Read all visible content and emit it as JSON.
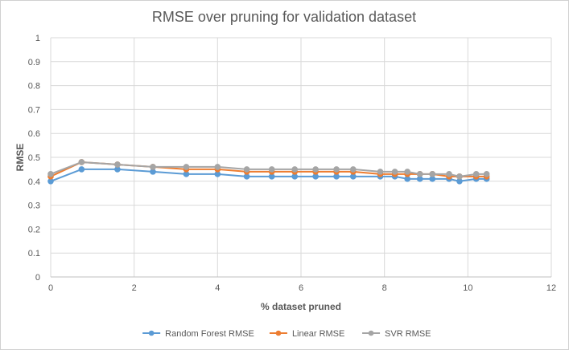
{
  "chart_data": {
    "type": "scatter",
    "title": "RMSE over pruning for validation dataset",
    "xlabel": "% dataset pruned",
    "ylabel": "RMSE",
    "xlim": [
      0,
      12
    ],
    "ylim": [
      0,
      1
    ],
    "xticks": [
      "0",
      "2",
      "4",
      "6",
      "8",
      "10",
      "12"
    ],
    "yticks": [
      "0",
      "0.1",
      "0.2",
      "0.3",
      "0.4",
      "0.5",
      "0.6",
      "0.7",
      "0.8",
      "0.9",
      "1"
    ],
    "grid": true,
    "legend_position": "bottom",
    "x": [
      0,
      0.74,
      1.6,
      2.45,
      3.25,
      4.0,
      4.7,
      5.3,
      5.85,
      6.35,
      6.85,
      7.25,
      7.9,
      8.25,
      8.55,
      8.85,
      9.15,
      9.55,
      9.8,
      10.2,
      10.45
    ],
    "series": [
      {
        "name": "Random Forest RMSE",
        "color": "#5B9BD5",
        "values": [
          0.4,
          0.45,
          0.45,
          0.44,
          0.43,
          0.43,
          0.42,
          0.42,
          0.42,
          0.42,
          0.42,
          0.42,
          0.42,
          0.42,
          0.41,
          0.41,
          0.41,
          0.41,
          0.4,
          0.41,
          0.41
        ]
      },
      {
        "name": "Linear RMSE",
        "color": "#ED7D31",
        "values": [
          0.42,
          0.48,
          0.47,
          0.46,
          0.45,
          0.45,
          0.44,
          0.44,
          0.44,
          0.44,
          0.44,
          0.44,
          0.43,
          0.43,
          0.43,
          0.43,
          0.43,
          0.42,
          0.42,
          0.42,
          0.42
        ]
      },
      {
        "name": "SVR RMSE",
        "color": "#A5A5A5",
        "values": [
          0.43,
          0.48,
          0.47,
          0.46,
          0.46,
          0.46,
          0.45,
          0.45,
          0.45,
          0.45,
          0.45,
          0.45,
          0.44,
          0.44,
          0.44,
          0.43,
          0.43,
          0.43,
          0.42,
          0.43,
          0.43
        ]
      }
    ]
  }
}
